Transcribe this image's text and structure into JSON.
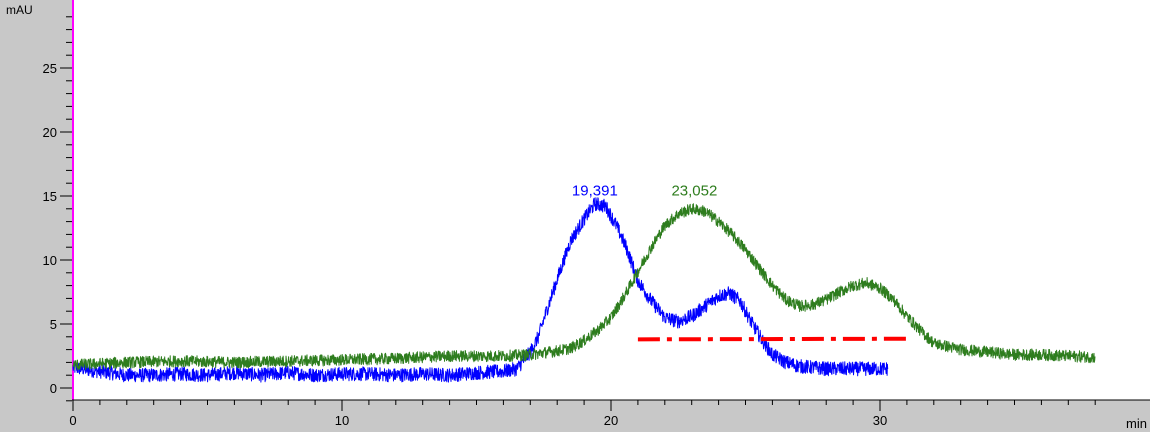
{
  "chart_data": {
    "type": "line",
    "title": "",
    "ylabel": "mAU",
    "xlabel": "min",
    "xlim": [
      0,
      38.5
    ],
    "ylim": [
      -1.2,
      29
    ],
    "x_ticks": [
      0,
      10,
      20,
      30
    ],
    "y_ticks": [
      0,
      5,
      10,
      15,
      20,
      25
    ],
    "x_tick_labels": [
      "0",
      "10",
      "20",
      "30"
    ],
    "y_tick_labels": [
      "0",
      "5",
      "10",
      "15",
      "20",
      "25"
    ],
    "grid": false,
    "series": [
      {
        "color": "#0000ff",
        "noise": 0.55,
        "x": [
          0.0,
          1.0,
          2.0,
          3.0,
          4.0,
          5.0,
          6.0,
          7.0,
          8.0,
          9.0,
          10.0,
          11.0,
          12.0,
          13.0,
          14.0,
          15.0,
          16.0,
          16.5,
          17.0,
          17.3,
          17.6,
          18.0,
          18.5,
          19.0,
          19.4,
          19.8,
          20.2,
          20.6,
          21.0,
          21.5,
          22.0,
          22.5,
          23.0,
          23.5,
          24.0,
          24.4,
          24.8,
          25.2,
          25.6,
          26.0,
          26.5,
          27.0,
          28.0,
          29.0,
          30.3
        ],
        "y": [
          1.6,
          1.3,
          1.0,
          1.0,
          1.1,
          1.0,
          1.2,
          1.0,
          1.2,
          1.0,
          1.1,
          1.1,
          1.0,
          1.1,
          1.0,
          1.2,
          1.3,
          1.5,
          2.8,
          4.0,
          6.0,
          8.5,
          11.5,
          13.2,
          14.4,
          14.2,
          12.7,
          10.8,
          8.4,
          6.8,
          5.5,
          5.2,
          5.6,
          6.4,
          7.2,
          7.4,
          6.8,
          5.2,
          3.8,
          2.6,
          2.0,
          1.7,
          1.5,
          1.5,
          1.5
        ]
      },
      {
        "color": "#2e7d1e",
        "noise": 0.45,
        "x": [
          0.0,
          2.0,
          4.0,
          6.0,
          8.0,
          10.0,
          12.0,
          14.0,
          16.0,
          17.0,
          18.0,
          18.5,
          19.0,
          19.5,
          20.0,
          20.5,
          21.0,
          21.5,
          22.0,
          22.5,
          23.0,
          23.5,
          24.0,
          24.5,
          25.0,
          25.5,
          26.0,
          26.5,
          27.0,
          27.5,
          28.0,
          28.5,
          29.0,
          29.5,
          30.0,
          30.5,
          31.0,
          31.5,
          32.0,
          33.0,
          34.0,
          35.0,
          36.0,
          37.0,
          38.0
        ],
        "y": [
          1.8,
          2.0,
          2.1,
          2.0,
          2.1,
          2.2,
          2.3,
          2.5,
          2.5,
          2.6,
          2.9,
          3.1,
          3.7,
          4.5,
          5.5,
          7.2,
          9.1,
          11.0,
          12.7,
          13.6,
          14.0,
          13.8,
          13.0,
          12.0,
          10.8,
          9.4,
          8.0,
          6.9,
          6.4,
          6.5,
          6.9,
          7.5,
          8.0,
          8.2,
          7.8,
          6.9,
          5.6,
          4.5,
          3.5,
          3.0,
          2.8,
          2.6,
          2.6,
          2.5,
          2.4
        ]
      }
    ],
    "annotations": [
      {
        "label": "19,391",
        "x": 19.4,
        "y": 15.2,
        "color": "#0000ff"
      },
      {
        "label": "23,052",
        "x": 23.1,
        "y": 15.2,
        "color": "#2e7d1e"
      }
    ],
    "reference_line": {
      "x": [
        21.0,
        31.2
      ],
      "y": [
        3.8,
        3.85
      ],
      "color": "#ff0000",
      "style": "dash-dot"
    }
  }
}
